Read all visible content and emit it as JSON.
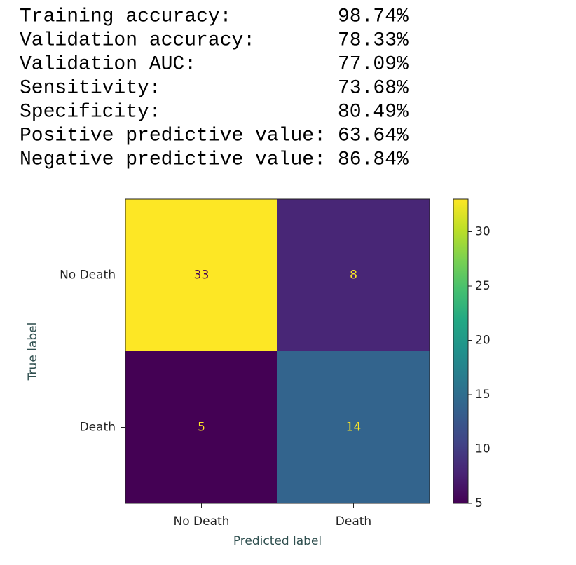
{
  "metrics": [
    {
      "label": "Training accuracy:",
      "value": "98.74%"
    },
    {
      "label": "Validation accuracy:",
      "value": "78.33%"
    },
    {
      "label": "Validation AUC:",
      "value": "77.09%"
    },
    {
      "label": "Sensitivity:",
      "value": "73.68%"
    },
    {
      "label": "Specificity:",
      "value": "80.49%"
    },
    {
      "label": "Positive predictive value:",
      "value": "63.64%"
    },
    {
      "label": "Negative predictive value:",
      "value": "86.84%"
    }
  ],
  "chart_data": {
    "type": "heatmap",
    "x_categories": [
      "No Death",
      "Death"
    ],
    "y_categories": [
      "No Death",
      "Death"
    ],
    "values": [
      [
        33,
        8
      ],
      [
        5,
        14
      ]
    ],
    "xlabel": "Predicted label",
    "ylabel": "True label",
    "colormap": "viridis",
    "clim": [
      5,
      33
    ],
    "colorbar_ticks": [
      5,
      10,
      15,
      20,
      25,
      30
    ]
  }
}
